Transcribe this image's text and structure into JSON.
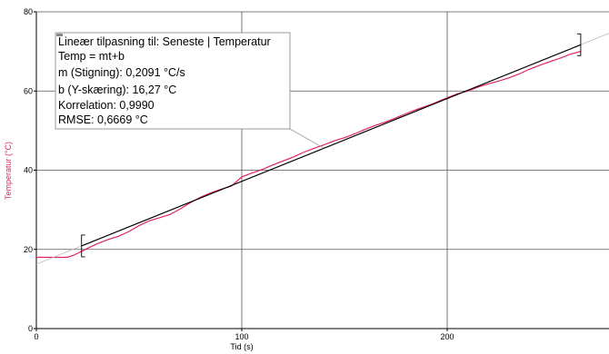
{
  "chart_data": {
    "type": "line",
    "xlabel": "Tid (s)",
    "ylabel": "Temperatur (°C)",
    "xlim": [
      0,
      280
    ],
    "ylim": [
      0,
      80
    ],
    "x_ticks": [
      0,
      100,
      200
    ],
    "y_ticks": [
      0,
      20,
      40,
      60,
      80
    ],
    "grid": true,
    "colors": {
      "data": "#e0245e",
      "fit": "#000000",
      "full_fit": "#bbbbbb",
      "grid": "#555555",
      "ylabel": "#e0245e"
    },
    "series": [
      {
        "name": "Seneste | Temperatur",
        "x": [
          0,
          5,
          10,
          15,
          18,
          20,
          22,
          25,
          30,
          35,
          40,
          45,
          50,
          55,
          60,
          65,
          70,
          75,
          80,
          85,
          90,
          95,
          100,
          105,
          110,
          115,
          120,
          125,
          130,
          135,
          140,
          145,
          150,
          155,
          160,
          165,
          170,
          175,
          180,
          185,
          190,
          195,
          200,
          205,
          210,
          215,
          220,
          225,
          230,
          235,
          240,
          245,
          250,
          255,
          260,
          265
        ],
        "y": [
          18,
          18,
          18,
          18,
          18.5,
          19,
          19.5,
          20.3,
          21.5,
          22.5,
          23.3,
          24.5,
          26,
          27.2,
          28,
          28.8,
          30.2,
          31.8,
          33.2,
          34.3,
          35.2,
          36,
          38.3,
          39.3,
          40.2,
          41.3,
          42.3,
          43.3,
          44.5,
          45.5,
          46.4,
          47.4,
          48.2,
          49.2,
          50.3,
          51.3,
          52.2,
          53.2,
          54.3,
          55.3,
          56.2,
          57.2,
          58.3,
          59.3,
          60,
          61,
          61.8,
          62.5,
          63.3,
          64.3,
          65.5,
          66.5,
          67.4,
          68.3,
          69.3,
          70
        ]
      }
    ],
    "fit": {
      "m": 0.2091,
      "b": 16.27,
      "range": [
        22,
        265
      ]
    },
    "fit_box": {
      "lines": [
        "Lineær tilpasning til: Seneste | Temperatur",
        "Temp = mt+b",
        "m (Stigning): 0,2091 °C/s",
        "b (Y-skæring): 16,27 °C",
        "Korrelation: 0,9990",
        "RMSE: 0,6669 °C"
      ],
      "anchor_x": 140
    }
  }
}
